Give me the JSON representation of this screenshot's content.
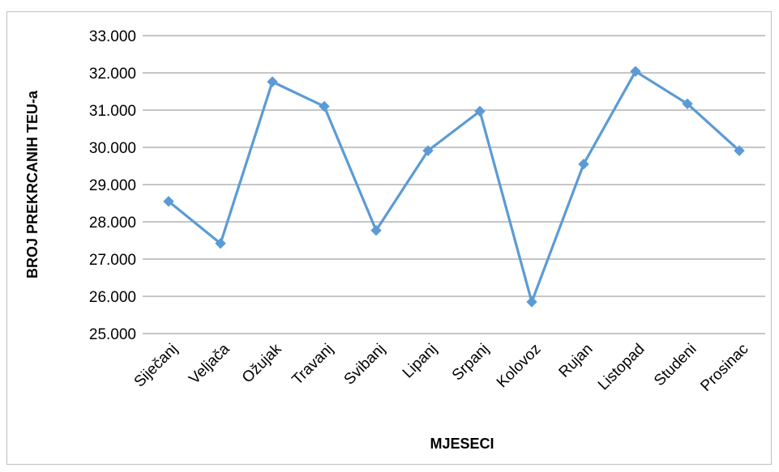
{
  "chart_data": {
    "type": "line",
    "title": "",
    "xlabel": "MJESECI",
    "ylabel": "BROJ PREKRCANIH TEU-a",
    "categories": [
      "Siječanj",
      "Veljača",
      "Ožujak",
      "Travanj",
      "Svibanj",
      "Lipanj",
      "Srpanj",
      "Kolovoz",
      "Rujan",
      "Listopad",
      "Studeni",
      "Prosinac"
    ],
    "series": [
      {
        "values": [
          28550,
          27420,
          31760,
          31100,
          27770,
          29910,
          30970,
          25850,
          29550,
          32040,
          31170,
          29910
        ],
        "color": "#5b9bd5"
      }
    ],
    "ylim": [
      25000,
      33000
    ],
    "yticks": [
      "25.000",
      "26.000",
      "27.000",
      "28.000",
      "29.000",
      "30.000",
      "31.000",
      "32.000",
      "33.000"
    ],
    "grid": true,
    "legend": "none",
    "marker": "diamond"
  }
}
